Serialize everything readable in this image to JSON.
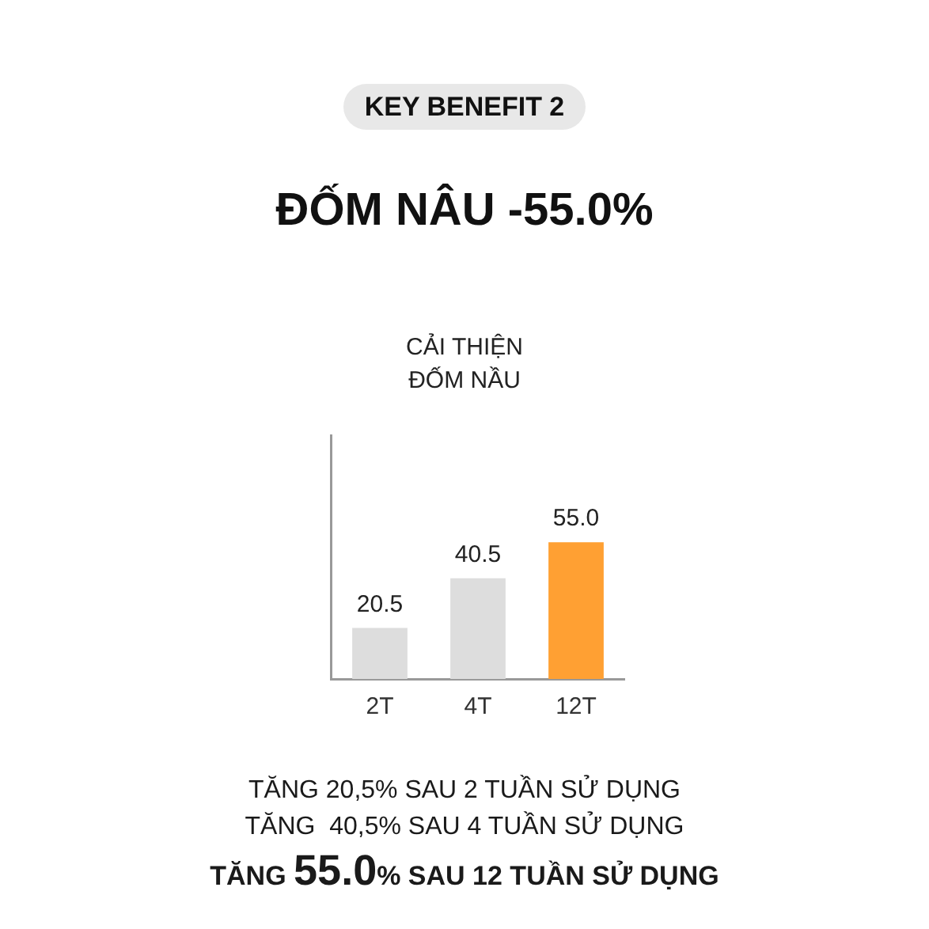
{
  "chart_data": {
    "type": "bar",
    "subtitle": "KEY BENEFIT 2",
    "title": "ĐỐM NÂU -55.0%",
    "ylabel": "CẢI THIỆN\nĐỐM NẦU",
    "categories": [
      "2T",
      "4T",
      "12T"
    ],
    "values": [
      20.5,
      40.5,
      55.0
    ],
    "colors": [
      "#dddddd",
      "#dddddd",
      "#ffa033"
    ],
    "value_labels": [
      "20.5",
      "40.5",
      "55.0"
    ],
    "ylim": [
      0,
      98
    ],
    "tick_labels": "x",
    "annotations": [
      "TĂNG 20,5% SAU 2 TUẦN SỬ DỤNG",
      "TĂNG  40,5% SAU 4 TUẦN SỬ DỤNG",
      "TĂNG 55.0% SAU 12 TUẦN SỬ DỤNG"
    ]
  }
}
